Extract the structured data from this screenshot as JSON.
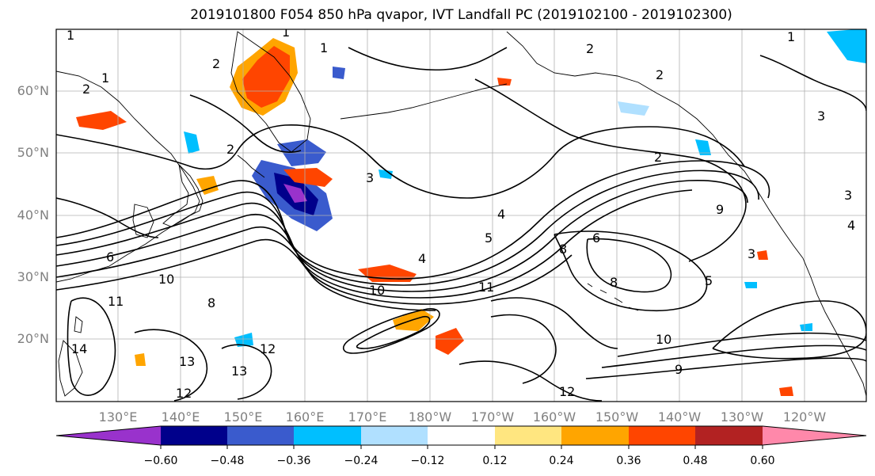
{
  "title": "2019101800 F054 850 hPa qvapor, IVT Landfall PC (2019102100 - 2019102300)",
  "lat_ticks": [
    "60°N",
    "50°N",
    "40°N",
    "30°N",
    "20°N"
  ],
  "lon_ticks": [
    "130°E",
    "140°E",
    "150°E",
    "160°E",
    "170°E",
    "180°W",
    "170°W",
    "160°W",
    "150°W",
    "140°W",
    "130°W",
    "120°W"
  ],
  "colorbar": {
    "colors": [
      "#9932cc",
      "#00008b",
      "#3a5bcd",
      "#00bfff",
      "#b0e0ff",
      "#ffffff",
      "#ffe680",
      "#ffa500",
      "#ff4500",
      "#b22222",
      "#ff88aa"
    ],
    "tick_labels": [
      "−0.60",
      "−0.48",
      "−0.36",
      "−0.24",
      "−0.12",
      "0.12",
      "0.24",
      "0.36",
      "0.48",
      "0.60"
    ]
  },
  "contour_labels": [
    "1",
    "1",
    "1",
    "1",
    "1",
    "2",
    "2",
    "2",
    "2",
    "2",
    "2",
    "3",
    "3",
    "3",
    "3",
    "4",
    "4",
    "4",
    "5",
    "5",
    "6",
    "6",
    "8",
    "8",
    "8",
    "9",
    "9",
    "10",
    "10",
    "10",
    "11",
    "11",
    "12",
    "12",
    "12",
    "13",
    "13",
    "14"
  ]
}
